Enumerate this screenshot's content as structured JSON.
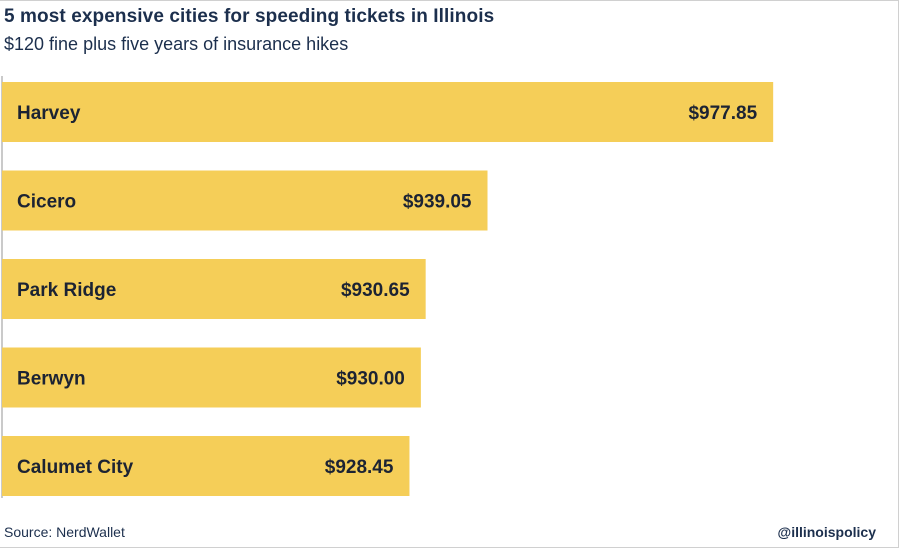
{
  "header": {
    "title": "5 most expensive cities for speeding tickets in Illinois",
    "subtitle": "$120 fine plus five years of insurance hikes"
  },
  "footer": {
    "source": "Source: NerdWallet",
    "handle": "@illinoispolicy"
  },
  "colors": {
    "bar": "#f5ce58",
    "text": "#1c2333",
    "title": "#1c2f4d",
    "axis": "#b8b8b8"
  },
  "chart_data": {
    "type": "bar",
    "orientation": "horizontal",
    "categories": [
      "Harvey",
      "Cicero",
      "Park Ridge",
      "Berwyn",
      "Calumet City"
    ],
    "values": [
      977.85,
      939.05,
      930.65,
      930.0,
      928.45
    ],
    "value_labels": [
      "$977.85",
      "$939.05",
      "$930.65",
      "$930.00",
      "$928.45"
    ],
    "title": "5 most expensive cities for speeding tickets in Illinois",
    "subtitle": "$120 fine plus five years of insurance hikes",
    "xlim": [
      900,
      980
    ],
    "grid": false,
    "legend": "none"
  }
}
